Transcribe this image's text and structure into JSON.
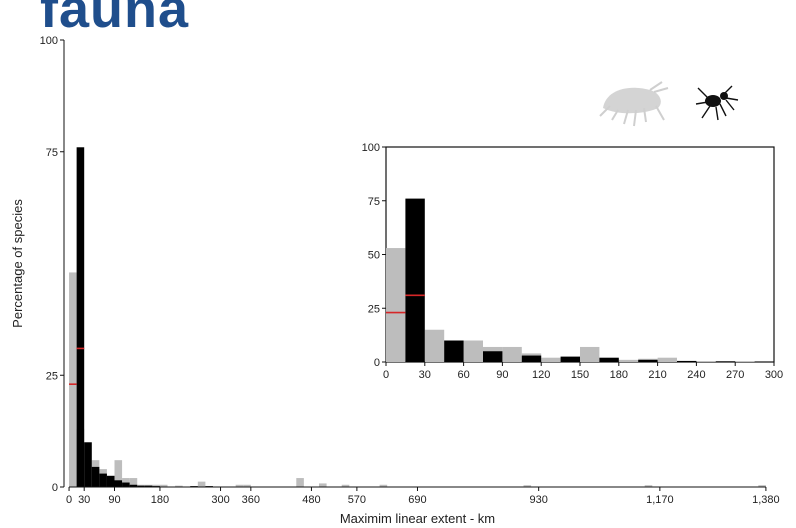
{
  "header": {
    "slide_title": "fauna"
  },
  "chart_data": [
    {
      "id": "main",
      "type": "bar",
      "xlabel": "Maximim linear extent - km",
      "ylabel": "Percentage of species",
      "xlim": [
        -10,
        1400
      ],
      "ylim": [
        0,
        100
      ],
      "xticks": [
        0,
        30,
        90,
        180,
        300,
        360,
        480,
        570,
        690,
        930,
        1170,
        1380
      ],
      "xtick_labels": [
        "0",
        "30",
        "90",
        "180",
        "300",
        "360",
        "480",
        "570",
        "690",
        "930",
        "1,170",
        "1,380"
      ],
      "yticks": [
        0,
        25,
        75,
        100
      ],
      "bin_width": 15,
      "series": [
        {
          "color": "#bdbdbd",
          "bins": [
            [
              0,
              48
            ],
            [
              15,
              13
            ],
            [
              30,
              10
            ],
            [
              45,
              6
            ],
            [
              60,
              4
            ],
            [
              75,
              2.5
            ],
            [
              90,
              6
            ],
            [
              105,
              2
            ],
            [
              120,
              2
            ],
            [
              135,
              0.5
            ],
            [
              150,
              0.5
            ],
            [
              165,
              0.5
            ],
            [
              180,
              0.5
            ],
            [
              210,
              0.3
            ],
            [
              255,
              1.2
            ],
            [
              330,
              0.5
            ],
            [
              345,
              0.5
            ],
            [
              450,
              2
            ],
            [
              495,
              0.8
            ],
            [
              540,
              0.5
            ],
            [
              615,
              0.5
            ],
            [
              900,
              0.4
            ],
            [
              1140,
              0.4
            ],
            [
              1365,
              0.4
            ]
          ]
        },
        {
          "color": "#000000",
          "bins": [
            [
              15,
              76
            ],
            [
              30,
              10
            ],
            [
              45,
              4.5
            ],
            [
              60,
              3
            ],
            [
              75,
              2.5
            ],
            [
              90,
              1.5
            ],
            [
              105,
              1
            ],
            [
              120,
              0.5
            ],
            [
              135,
              0.3
            ],
            [
              150,
              0.3
            ],
            [
              165,
              0.2
            ],
            [
              240,
              0.2
            ],
            [
              270,
              0.2
            ]
          ]
        }
      ],
      "reference_marks": [
        {
          "color": "#d62728",
          "x0": 0,
          "x1": 15,
          "y": 23
        },
        {
          "color": "#d62728",
          "x0": 15,
          "x1": 30,
          "y": 31
        }
      ]
    },
    {
      "id": "inset",
      "type": "bar",
      "xlim": [
        0,
        300
      ],
      "ylim": [
        0,
        100
      ],
      "xticks": [
        0,
        30,
        60,
        90,
        120,
        150,
        180,
        210,
        240,
        270,
        300
      ],
      "xtick_labels": [
        "0",
        "30",
        "60",
        "90",
        "120",
        "150",
        "180",
        "210",
        "240",
        "270",
        "300"
      ],
      "yticks": [
        0,
        25,
        50,
        75,
        100
      ],
      "bin_width": 15,
      "series": [
        {
          "color": "#bdbdbd",
          "bins": [
            [
              0,
              53
            ],
            [
              30,
              15
            ],
            [
              45,
              10
            ],
            [
              60,
              10
            ],
            [
              75,
              7
            ],
            [
              90,
              7
            ],
            [
              105,
              4
            ],
            [
              120,
              2
            ],
            [
              135,
              2.5
            ],
            [
              150,
              7
            ],
            [
              165,
              1.5
            ],
            [
              180,
              1
            ],
            [
              195,
              1.5
            ],
            [
              210,
              2
            ],
            [
              225,
              0.4
            ],
            [
              240,
              0.4
            ],
            [
              255,
              0.4
            ],
            [
              270,
              0.3
            ]
          ]
        },
        {
          "color": "#000000",
          "bins": [
            [
              15,
              76
            ],
            [
              45,
              10
            ],
            [
              75,
              5
            ],
            [
              105,
              3
            ],
            [
              135,
              2.5
            ],
            [
              165,
              2
            ],
            [
              195,
              1
            ],
            [
              225,
              0.5
            ],
            [
              255,
              0.3
            ]
          ]
        }
      ],
      "reference_marks": [
        {
          "color": "#d62728",
          "x0": 0,
          "x1": 15,
          "y": 23
        },
        {
          "color": "#d62728",
          "x0": 15,
          "x1": 30,
          "y": 31
        }
      ]
    }
  ],
  "icons": [
    {
      "name": "amphipod-icon"
    },
    {
      "name": "spider-icon"
    }
  ]
}
